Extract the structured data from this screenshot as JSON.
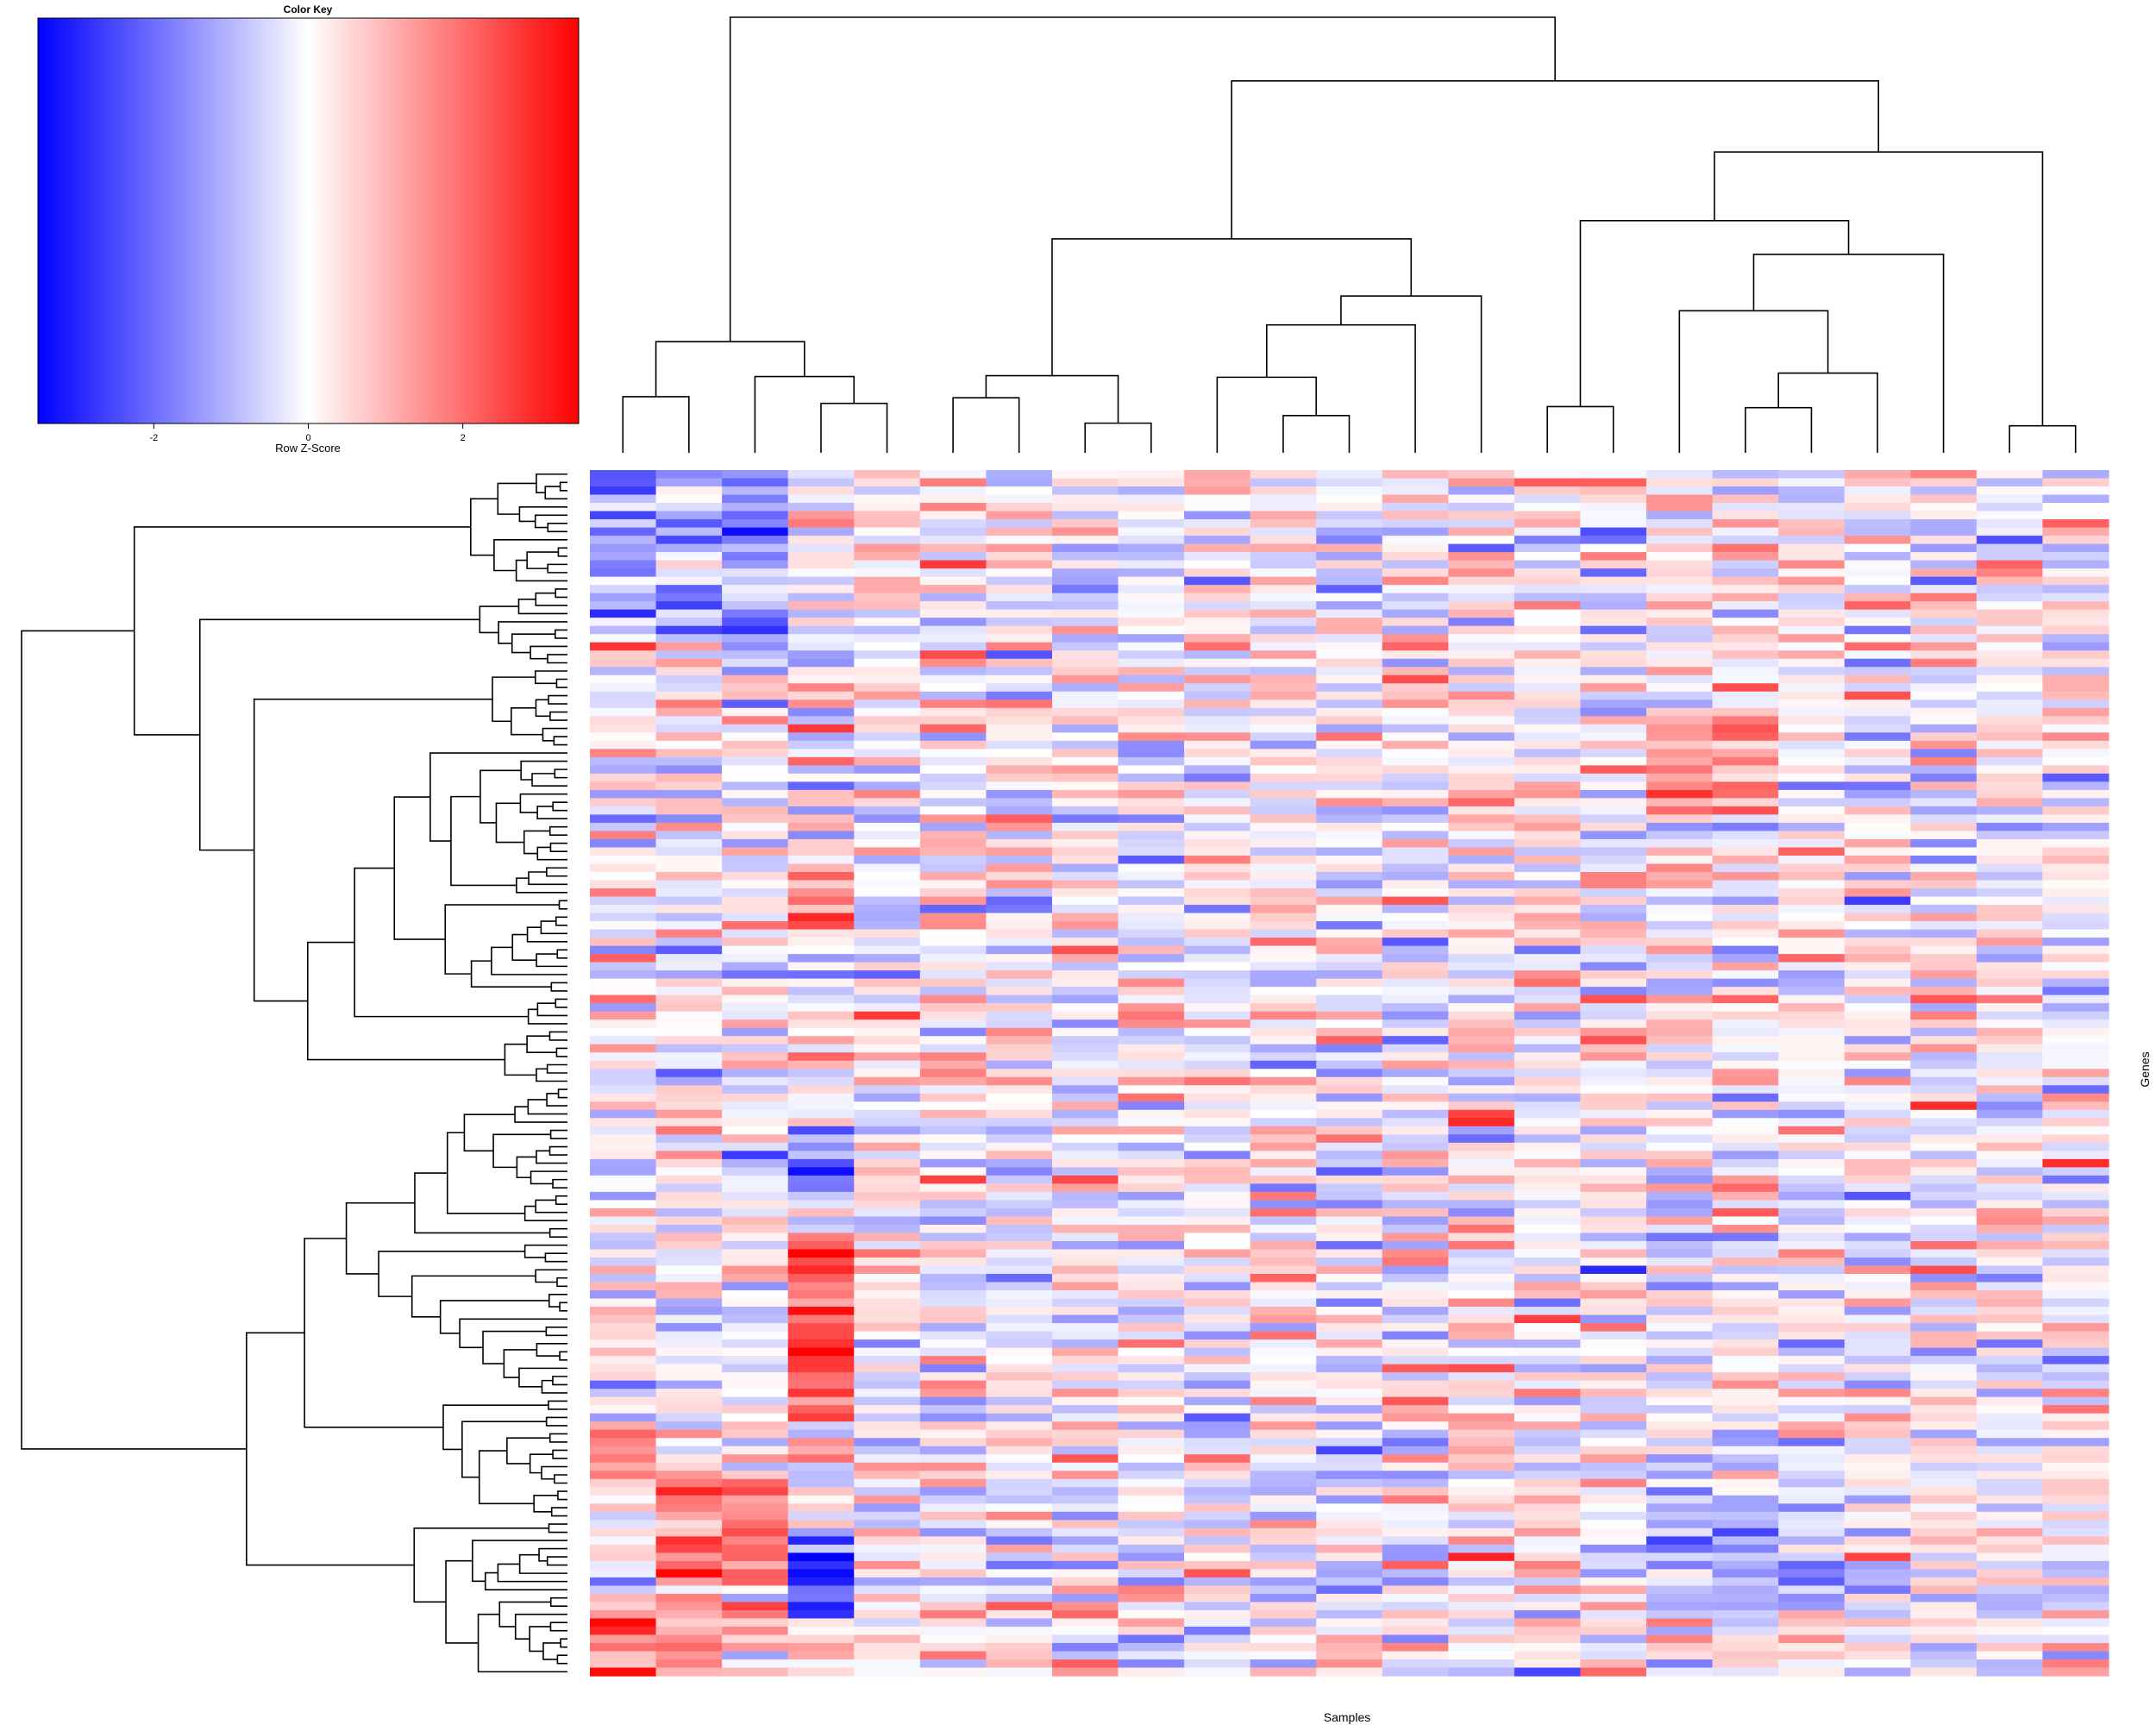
{
  "chart_data": {
    "type": "heatmap",
    "title": "",
    "xlabel": "Samples",
    "ylabel": "Genes",
    "n_samples": 23,
    "n_genes": 147,
    "color_key": {
      "title": "Color Key",
      "label": "Row Z-Score",
      "range": [
        -3.5,
        3.5
      ],
      "ticks": [
        -2,
        0,
        2
      ],
      "tick_labels": [
        "-2",
        "0",
        "2"
      ],
      "colors": {
        "low": "#0000ff",
        "mid": "#ffffff",
        "high": "#ff0000"
      }
    },
    "column_dendrogram": true,
    "row_dendrogram": true,
    "seed": 20240607
  }
}
